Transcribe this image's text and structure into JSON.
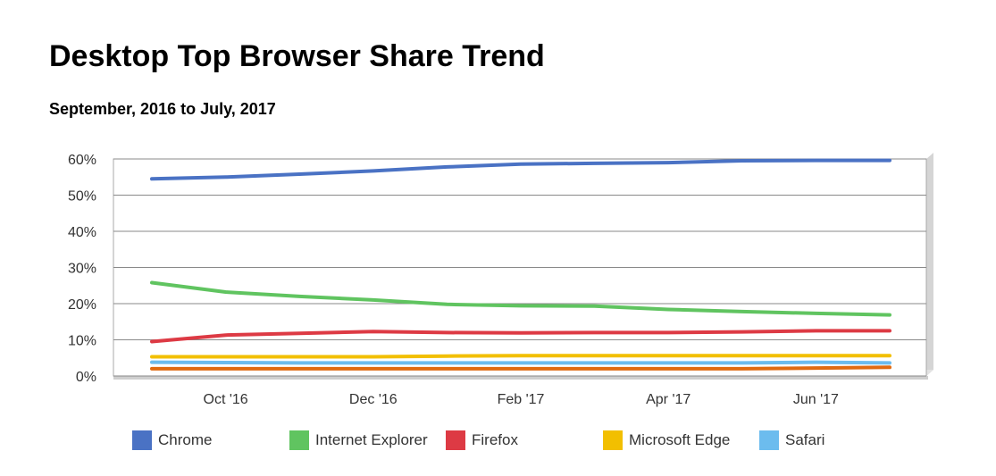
{
  "title": "Desktop Top Browser Share Trend",
  "subtitle": "September, 2016 to July, 2017",
  "chart_data": {
    "type": "line",
    "x": [
      "Sep '16",
      "Oct '16",
      "Nov '16",
      "Dec '16",
      "Jan '17",
      "Feb '17",
      "Mar '17",
      "Apr '17",
      "May '17",
      "Jun '17",
      "Jul '17"
    ],
    "x_tick_labels": [
      "Oct '16",
      "Dec '16",
      "Feb '17",
      "Apr '17",
      "Jun '17"
    ],
    "y_tick_labels": [
      "0%",
      "10%",
      "20%",
      "30%",
      "40%",
      "50%",
      "60%"
    ],
    "ylim": [
      0,
      60
    ],
    "grid": true,
    "legend_position": "bottom",
    "series": [
      {
        "name": "Chrome",
        "color": "#4a72c4",
        "values": [
          54.5,
          55.0,
          55.8,
          56.7,
          57.8,
          58.6,
          58.8,
          59.0,
          59.5,
          59.6,
          59.6
        ]
      },
      {
        "name": "Internet Explorer",
        "color": "#60c460",
        "values": [
          25.8,
          23.2,
          22.0,
          21.0,
          19.8,
          19.4,
          19.3,
          18.4,
          17.8,
          17.3,
          16.9
        ]
      },
      {
        "name": "Firefox",
        "color": "#dd3a44",
        "values": [
          9.5,
          11.3,
          11.8,
          12.3,
          12.0,
          11.9,
          12.0,
          12.0,
          12.2,
          12.5,
          12.5
        ]
      },
      {
        "name": "Microsoft Edge",
        "color": "#f2bf00",
        "values": [
          5.3,
          5.3,
          5.3,
          5.3,
          5.5,
          5.6,
          5.6,
          5.6,
          5.6,
          5.6,
          5.6
        ]
      },
      {
        "name": "Safari",
        "color": "#6cbcee",
        "values": [
          3.8,
          3.7,
          3.6,
          3.6,
          3.6,
          3.6,
          3.6,
          3.6,
          3.6,
          3.8,
          3.6
        ]
      },
      {
        "name": "",
        "color": "#e06a10",
        "values": [
          2.0,
          2.0,
          2.0,
          2.0,
          2.0,
          2.0,
          2.0,
          2.0,
          2.0,
          2.2,
          2.4
        ]
      }
    ]
  }
}
